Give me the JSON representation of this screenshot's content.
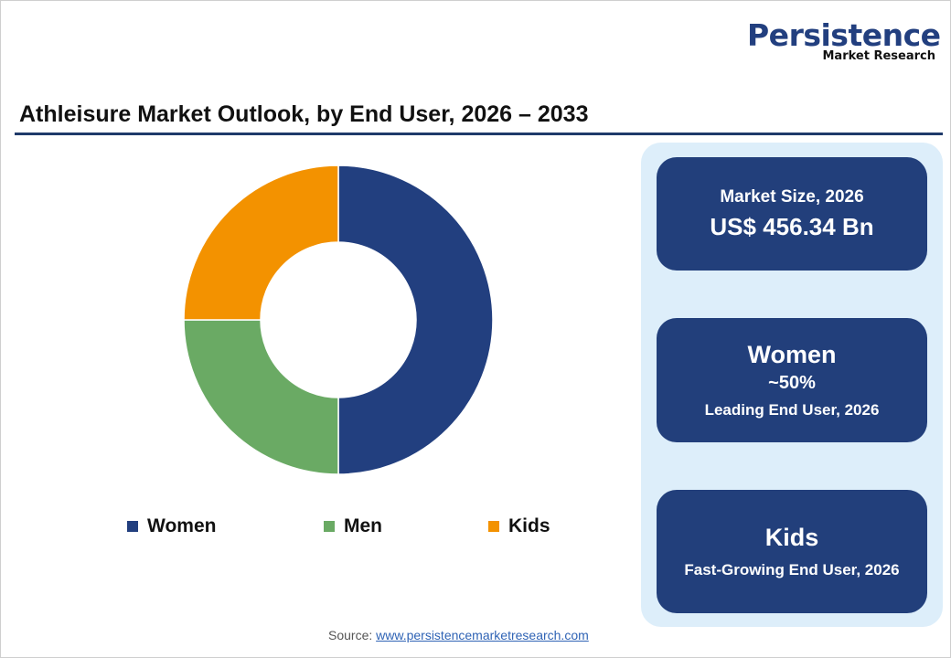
{
  "logo": {
    "line1": "Persistence",
    "line2": "Market Research"
  },
  "title": "Athleisure Market Outlook, by End User, 2026 – 2033",
  "chart_data": {
    "type": "pie",
    "donut": true,
    "categories": [
      "Women",
      "Men",
      "Kids"
    ],
    "values": [
      50,
      25,
      25
    ],
    "colors": [
      "#223f7f",
      "#6aaa64",
      "#f39200"
    ],
    "legend_position": "bottom"
  },
  "cards": [
    {
      "label": "Market Size, 2026",
      "value": "US$ 456.34 Bn"
    },
    {
      "title": "Women",
      "value": "~50%",
      "label": "Leading End User, 2026"
    },
    {
      "title": "Kids",
      "label": "Fast-Growing End User, 2026"
    }
  ],
  "source": {
    "label": "Source:",
    "link": "www.persistencemarketresearch.com"
  }
}
